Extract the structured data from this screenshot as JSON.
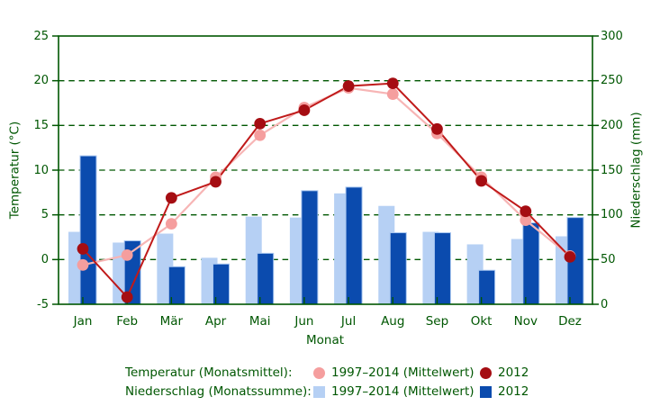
{
  "colors": {
    "axis_green": "#005702",
    "background": "#ffffff",
    "temp_mean_marker": "#f59e9e",
    "temp_mean_line": "#f7b5b5",
    "temp_2012_marker": "#a50d12",
    "temp_2012_line": "#c01a1a",
    "precip_mean_fill": "#b6d0f4",
    "precip_2012_fill": "#0b4bae",
    "precip_2012_border": "#a8c6f0"
  },
  "chart_data": {
    "type": "combo",
    "categories": [
      "Jan",
      "Feb",
      "Mär",
      "Apr",
      "Mai",
      "Jun",
      "Jul",
      "Aug",
      "Sep",
      "Okt",
      "Nov",
      "Dez"
    ],
    "xlabel": "Monat",
    "ylabel_left": "Temperatur (°C)",
    "ylabel_right": "Niederschlag (mm)",
    "ylim_left": [
      -5,
      25
    ],
    "ylim_right": [
      0,
      300
    ],
    "left_ticks": [
      "25",
      "20",
      "15",
      "10",
      "5",
      "0",
      "-5"
    ],
    "right_ticks": [
      "300",
      "250",
      "200",
      "150",
      "100",
      "50",
      "0"
    ],
    "grid": "horizontal dashed dark-green lines at 20/15/10/5/0 °C (250/200/150/100/50 mm)",
    "legend_position": "bottom",
    "series": [
      {
        "name": "Temperatur 1997–2014 (Mittelwert)",
        "type": "line",
        "axis": "left",
        "unit": "°C",
        "values": [
          -0.6,
          0.5,
          4.0,
          9.2,
          13.9,
          17.0,
          19.2,
          18.5,
          14.1,
          9.2,
          4.4,
          0.4
        ]
      },
      {
        "name": "Temperatur 2012",
        "type": "line",
        "axis": "left",
        "unit": "°C",
        "values": [
          1.2,
          -4.2,
          6.9,
          8.7,
          15.2,
          16.7,
          19.4,
          19.7,
          14.6,
          8.8,
          5.4,
          0.3
        ]
      },
      {
        "name": "Niederschlag 1997–2014 (Mittelwert)",
        "type": "bar",
        "axis": "right",
        "unit": "mm",
        "values": [
          81,
          69,
          79,
          52,
          98,
          97,
          124,
          110,
          81,
          67,
          73,
          76
        ]
      },
      {
        "name": "Niederschlag 2012",
        "type": "bar",
        "axis": "right",
        "unit": "mm",
        "values": [
          166,
          71,
          42,
          45,
          57,
          127,
          131,
          80,
          80,
          38,
          91,
          97
        ]
      }
    ]
  },
  "legend": {
    "temp_row_label": "Temperatur (Monatsmittel):",
    "precip_row_label": "Niederschlag (Monatssumme):",
    "mean_label": "1997–2014 (Mittelwert)",
    "year_label": "2012"
  }
}
